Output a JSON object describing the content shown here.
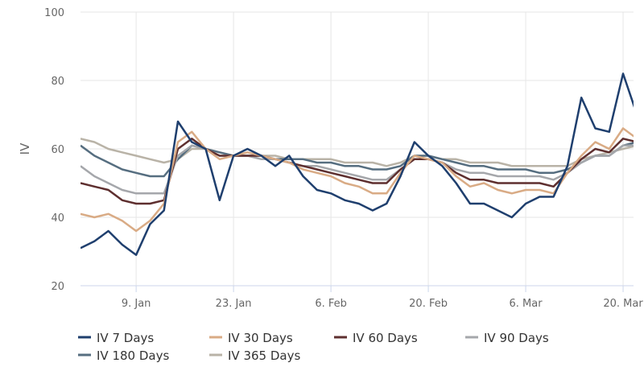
{
  "chart_data": {
    "type": "line",
    "title": "",
    "xlabel": "",
    "ylabel": "IV",
    "ylim": [
      20,
      100
    ],
    "yticks": [
      "20",
      "40",
      "60",
      "80",
      "100"
    ],
    "xticks": [
      {
        "label": "9. Jan",
        "day": 8
      },
      {
        "label": "23. Jan",
        "day": 22
      },
      {
        "label": "6. Feb",
        "day": 36
      },
      {
        "label": "20. Feb",
        "day": 50
      },
      {
        "label": "6. Mar",
        "day": 64
      },
      {
        "label": "20. Mar",
        "day": 78
      }
    ],
    "x": [
      0,
      2,
      4,
      6,
      8,
      10,
      12,
      14,
      16,
      18,
      20,
      22,
      24,
      26,
      28,
      30,
      32,
      34,
      36,
      38,
      40,
      42,
      44,
      46,
      48,
      50,
      52,
      54,
      56,
      58,
      60,
      62,
      64,
      66,
      68,
      70,
      72,
      74,
      76,
      78,
      80
    ],
    "xlim": [
      0,
      79.5
    ],
    "grid": true,
    "legend": "bottom",
    "series": [
      {
        "name": "IV 7 Days",
        "color": "#1f3f6e",
        "values": [
          31,
          33,
          36,
          32,
          29,
          38,
          42,
          68,
          62,
          60,
          45,
          58,
          60,
          58,
          55,
          58,
          52,
          48,
          47,
          45,
          44,
          42,
          44,
          52,
          62,
          58,
          55,
          50,
          44,
          44,
          42,
          40,
          44,
          46,
          46,
          55,
          75,
          66,
          65,
          82,
          70
        ]
      },
      {
        "name": "IV 30 Days",
        "color": "#d9ab85",
        "values": [
          41,
          40,
          41,
          39,
          36,
          39,
          44,
          62,
          65,
          60,
          57,
          58,
          59,
          58,
          57,
          56,
          54,
          53,
          52,
          50,
          49,
          47,
          47,
          53,
          58,
          57,
          56,
          52,
          49,
          50,
          48,
          47,
          48,
          48,
          47,
          53,
          58,
          62,
          60,
          66,
          63
        ]
      },
      {
        "name": "IV 60 Days",
        "color": "#5e2f2f",
        "values": [
          50,
          49,
          48,
          45,
          44,
          44,
          45,
          60,
          63,
          60,
          58,
          58,
          58,
          58,
          57,
          56,
          55,
          54,
          53,
          52,
          51,
          50,
          50,
          54,
          57,
          57,
          56,
          53,
          51,
          51,
          50,
          50,
          50,
          50,
          49,
          53,
          57,
          60,
          59,
          63,
          62
        ]
      },
      {
        "name": "IV 90 Days",
        "color": "#a5a7ab",
        "values": [
          55,
          52,
          50,
          48,
          47,
          47,
          47,
          58,
          61,
          60,
          58,
          58,
          58,
          57,
          57,
          56,
          55,
          55,
          54,
          53,
          52,
          51,
          51,
          54,
          57,
          57,
          56,
          54,
          53,
          53,
          52,
          52,
          52,
          52,
          51,
          53,
          56,
          58,
          58,
          61,
          61
        ]
      },
      {
        "name": "IV 180 Days",
        "color": "#566e80",
        "values": [
          61,
          58,
          56,
          54,
          53,
          52,
          52,
          57,
          61,
          60,
          59,
          58,
          58,
          58,
          57,
          57,
          57,
          56,
          56,
          55,
          55,
          54,
          54,
          55,
          58,
          58,
          57,
          56,
          55,
          55,
          54,
          54,
          54,
          53,
          53,
          54,
          56,
          58,
          58,
          61,
          62
        ]
      },
      {
        "name": "IV 365 Days",
        "color": "#b9b3a7",
        "values": [
          63,
          62,
          60,
          59,
          58,
          57,
          56,
          57,
          60,
          60,
          59,
          58,
          58,
          58,
          58,
          57,
          57,
          57,
          57,
          56,
          56,
          56,
          55,
          56,
          58,
          58,
          57,
          57,
          56,
          56,
          56,
          55,
          55,
          55,
          55,
          55,
          57,
          58,
          59,
          60,
          61
        ]
      }
    ]
  }
}
